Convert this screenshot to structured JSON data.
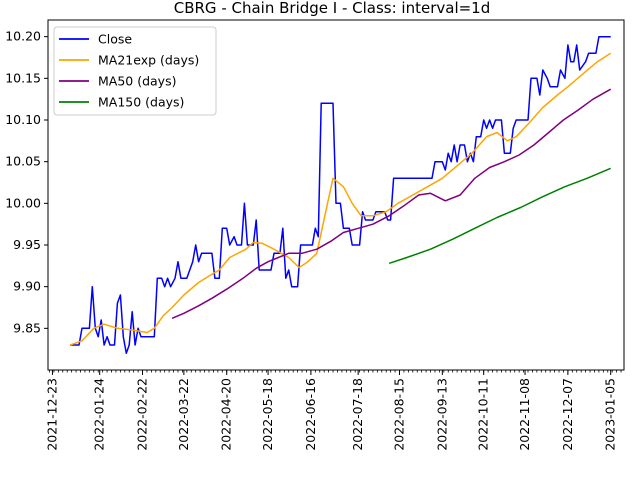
{
  "chart_data": {
    "type": "line",
    "title": "CBRG - Chain Bridge I - Class: interval=1d",
    "xlabel": "",
    "ylabel": "",
    "x_range": [
      "2021-12-20",
      "2022-01-24"
    ],
    "ylim": [
      9.8,
      10.22
    ],
    "y_ticks": [
      9.85,
      9.9,
      9.95,
      10.0,
      10.05,
      10.1,
      10.15,
      10.2
    ],
    "x_ticks": [
      "2021-12-23",
      "2022-01-24",
      "2022-02-22",
      "2022-03-22",
      "2022-04-20",
      "2022-05-18",
      "2022-06-16",
      "2022-07-18",
      "2022-08-15",
      "2022-09-13",
      "2022-10-11",
      "2022-11-08",
      "2022-12-07",
      "2023-01-05"
    ],
    "x_tick_labels": [
      "2021-12-23",
      "2022-01-24",
      "2022-02-22",
      "2022-03-22",
      "2022-04-20",
      "2022-05-18",
      "2022-06-16",
      "2022-07-18",
      "2022-08-15",
      "2022-09-13",
      "2022-10-11",
      "2022-11-08",
      "2022-12-07",
      "2023-01-05"
    ],
    "grid": false,
    "legend_position": "upper-left",
    "series": [
      {
        "name": "Close",
        "color": "#0000ff",
        "points": [
          [
            "2022-01-04",
            9.83
          ],
          [
            "2022-01-10",
            9.83
          ],
          [
            "2022-01-12",
            9.85
          ],
          [
            "2022-01-17",
            9.85
          ],
          [
            "2022-01-19",
            9.9
          ],
          [
            "2022-01-21",
            9.85
          ],
          [
            "2022-01-23",
            9.84
          ],
          [
            "2022-01-25",
            9.86
          ],
          [
            "2022-01-27",
            9.83
          ],
          [
            "2022-01-29",
            9.84
          ],
          [
            "2022-01-31",
            9.83
          ],
          [
            "2022-02-03",
            9.83
          ],
          [
            "2022-02-05",
            9.88
          ],
          [
            "2022-02-07",
            9.89
          ],
          [
            "2022-02-09",
            9.84
          ],
          [
            "2022-02-11",
            9.82
          ],
          [
            "2022-02-13",
            9.83
          ],
          [
            "2022-02-15",
            9.87
          ],
          [
            "2022-02-17",
            9.83
          ],
          [
            "2022-02-19",
            9.85
          ],
          [
            "2022-02-21",
            9.84
          ],
          [
            "2022-03-02",
            9.84
          ],
          [
            "2022-03-04",
            9.91
          ],
          [
            "2022-03-07",
            9.91
          ],
          [
            "2022-03-09",
            9.9
          ],
          [
            "2022-03-11",
            9.91
          ],
          [
            "2022-03-13",
            9.9
          ],
          [
            "2022-03-16",
            9.91
          ],
          [
            "2022-03-18",
            9.93
          ],
          [
            "2022-03-20",
            9.91
          ],
          [
            "2022-03-24",
            9.91
          ],
          [
            "2022-03-28",
            9.93
          ],
          [
            "2022-03-30",
            9.95
          ],
          [
            "2022-04-01",
            9.93
          ],
          [
            "2022-04-03",
            9.94
          ],
          [
            "2022-04-10",
            9.94
          ],
          [
            "2022-04-12",
            9.91
          ],
          [
            "2022-04-15",
            9.91
          ],
          [
            "2022-04-17",
            9.97
          ],
          [
            "2022-04-20",
            9.97
          ],
          [
            "2022-04-22",
            9.95
          ],
          [
            "2022-04-25",
            9.96
          ],
          [
            "2022-04-27",
            9.95
          ],
          [
            "2022-04-30",
            9.95
          ],
          [
            "2022-05-02",
            10.0
          ],
          [
            "2022-05-04",
            9.95
          ],
          [
            "2022-05-08",
            9.95
          ],
          [
            "2022-05-10",
            9.98
          ],
          [
            "2022-05-12",
            9.92
          ],
          [
            "2022-05-20",
            9.92
          ],
          [
            "2022-05-22",
            9.94
          ],
          [
            "2022-05-26",
            9.94
          ],
          [
            "2022-05-28",
            9.97
          ],
          [
            "2022-05-30",
            9.91
          ],
          [
            "2022-06-01",
            9.92
          ],
          [
            "2022-06-03",
            9.9
          ],
          [
            "2022-06-07",
            9.9
          ],
          [
            "2022-06-09",
            9.95
          ],
          [
            "2022-06-17",
            9.95
          ],
          [
            "2022-06-19",
            9.97
          ],
          [
            "2022-06-21",
            9.96
          ],
          [
            "2022-06-23",
            10.12
          ],
          [
            "2022-07-01",
            10.12
          ],
          [
            "2022-07-03",
            10.0
          ],
          [
            "2022-07-06",
            10.0
          ],
          [
            "2022-07-08",
            9.97
          ],
          [
            "2022-07-12",
            9.97
          ],
          [
            "2022-07-14",
            9.95
          ],
          [
            "2022-07-19",
            9.95
          ],
          [
            "2022-07-21",
            9.99
          ],
          [
            "2022-07-23",
            9.98
          ],
          [
            "2022-07-28",
            9.98
          ],
          [
            "2022-07-30",
            9.99
          ],
          [
            "2022-08-05",
            9.99
          ],
          [
            "2022-08-07",
            9.98
          ],
          [
            "2022-08-09",
            9.98
          ],
          [
            "2022-08-11",
            10.03
          ],
          [
            "2022-09-06",
            10.03
          ],
          [
            "2022-09-08",
            10.05
          ],
          [
            "2022-09-13",
            10.05
          ],
          [
            "2022-09-15",
            10.04
          ],
          [
            "2022-09-17",
            10.06
          ],
          [
            "2022-09-19",
            10.05
          ],
          [
            "2022-09-21",
            10.07
          ],
          [
            "2022-09-23",
            10.05
          ],
          [
            "2022-09-25",
            10.07
          ],
          [
            "2022-09-28",
            10.07
          ],
          [
            "2022-09-30",
            10.05
          ],
          [
            "2022-10-02",
            10.06
          ],
          [
            "2022-10-04",
            10.05
          ],
          [
            "2022-10-06",
            10.08
          ],
          [
            "2022-10-09",
            10.08
          ],
          [
            "2022-10-11",
            10.1
          ],
          [
            "2022-10-13",
            10.09
          ],
          [
            "2022-10-15",
            10.1
          ],
          [
            "2022-10-17",
            10.09
          ],
          [
            "2022-10-19",
            10.1
          ],
          [
            "2022-10-23",
            10.1
          ],
          [
            "2022-10-25",
            10.06
          ],
          [
            "2022-10-29",
            10.06
          ],
          [
            "2022-10-31",
            10.09
          ],
          [
            "2022-11-02",
            10.1
          ],
          [
            "2022-11-10",
            10.1
          ],
          [
            "2022-11-12",
            10.15
          ],
          [
            "2022-11-16",
            10.15
          ],
          [
            "2022-11-18",
            10.13
          ],
          [
            "2022-11-20",
            10.16
          ],
          [
            "2022-11-23",
            10.15
          ],
          [
            "2022-11-25",
            10.14
          ],
          [
            "2022-11-30",
            10.14
          ],
          [
            "2022-12-02",
            10.16
          ],
          [
            "2022-12-05",
            10.15
          ],
          [
            "2022-12-07",
            10.19
          ],
          [
            "2022-12-09",
            10.17
          ],
          [
            "2022-12-11",
            10.17
          ],
          [
            "2022-12-13",
            10.19
          ],
          [
            "2022-12-15",
            10.16
          ],
          [
            "2022-12-19",
            10.17
          ],
          [
            "2022-12-21",
            10.18
          ],
          [
            "2022-12-26",
            10.18
          ],
          [
            "2022-12-28",
            10.2
          ],
          [
            "2023-01-05",
            10.2
          ]
        ]
      },
      {
        "name": "MA21exp (days)",
        "color": "#ffa500",
        "points": [
          [
            "2022-01-04",
            9.83
          ],
          [
            "2022-01-12",
            9.835
          ],
          [
            "2022-01-20",
            9.85
          ],
          [
            "2022-01-27",
            9.855
          ],
          [
            "2022-02-05",
            9.85
          ],
          [
            "2022-02-15",
            9.848
          ],
          [
            "2022-02-25",
            9.845
          ],
          [
            "2022-03-02",
            9.85
          ],
          [
            "2022-03-08",
            9.865
          ],
          [
            "2022-03-14",
            9.875
          ],
          [
            "2022-03-22",
            9.89
          ],
          [
            "2022-04-01",
            9.905
          ],
          [
            "2022-04-10",
            9.915
          ],
          [
            "2022-04-15",
            9.92
          ],
          [
            "2022-04-22",
            9.935
          ],
          [
            "2022-05-03",
            9.945
          ],
          [
            "2022-05-08",
            9.953
          ],
          [
            "2022-05-14",
            9.952
          ],
          [
            "2022-05-22",
            9.945
          ],
          [
            "2022-06-01",
            9.935
          ],
          [
            "2022-06-08",
            9.923
          ],
          [
            "2022-06-14",
            9.93
          ],
          [
            "2022-06-20",
            9.94
          ],
          [
            "2022-06-26",
            9.99
          ],
          [
            "2022-07-01",
            10.03
          ],
          [
            "2022-07-08",
            10.02
          ],
          [
            "2022-07-14",
            10.0
          ],
          [
            "2022-07-20",
            9.985
          ],
          [
            "2022-07-28",
            9.985
          ],
          [
            "2022-08-06",
            9.99
          ],
          [
            "2022-08-14",
            10.0
          ],
          [
            "2022-08-24",
            10.01
          ],
          [
            "2022-09-03",
            10.02
          ],
          [
            "2022-09-13",
            10.03
          ],
          [
            "2022-09-23",
            10.045
          ],
          [
            "2022-10-03",
            10.06
          ],
          [
            "2022-10-13",
            10.08
          ],
          [
            "2022-10-20",
            10.085
          ],
          [
            "2022-10-27",
            10.075
          ],
          [
            "2022-11-02",
            10.08
          ],
          [
            "2022-11-10",
            10.095
          ],
          [
            "2022-11-20",
            10.115
          ],
          [
            "2022-11-30",
            10.13
          ],
          [
            "2022-12-07",
            10.14
          ],
          [
            "2022-12-17",
            10.155
          ],
          [
            "2022-12-27",
            10.17
          ],
          [
            "2023-01-05",
            10.18
          ]
        ]
      },
      {
        "name": "MA50 (days)",
        "color": "#800080",
        "points": [
          [
            "2022-03-14",
            9.862
          ],
          [
            "2022-03-22",
            9.868
          ],
          [
            "2022-04-01",
            9.877
          ],
          [
            "2022-04-10",
            9.886
          ],
          [
            "2022-04-20",
            9.897
          ],
          [
            "2022-05-01",
            9.91
          ],
          [
            "2022-05-10",
            9.922
          ],
          [
            "2022-05-18",
            9.93
          ],
          [
            "2022-05-25",
            9.935
          ],
          [
            "2022-06-01",
            9.94
          ],
          [
            "2022-06-10",
            9.94
          ],
          [
            "2022-06-20",
            9.945
          ],
          [
            "2022-06-30",
            9.955
          ],
          [
            "2022-07-08",
            9.965
          ],
          [
            "2022-07-18",
            9.97
          ],
          [
            "2022-07-28",
            9.975
          ],
          [
            "2022-08-08",
            9.985
          ],
          [
            "2022-08-18",
            9.997
          ],
          [
            "2022-08-28",
            10.01
          ],
          [
            "2022-09-05",
            10.012
          ],
          [
            "2022-09-15",
            10.003
          ],
          [
            "2022-09-25",
            10.01
          ],
          [
            "2022-10-05",
            10.03
          ],
          [
            "2022-10-15",
            10.043
          ],
          [
            "2022-10-25",
            10.05
          ],
          [
            "2022-11-04",
            10.058
          ],
          [
            "2022-11-14",
            10.07
          ],
          [
            "2022-11-24",
            10.085
          ],
          [
            "2022-12-04",
            10.1
          ],
          [
            "2022-12-14",
            10.112
          ],
          [
            "2022-12-24",
            10.125
          ],
          [
            "2023-01-05",
            10.137
          ]
        ]
      },
      {
        "name": "MA150 (days)",
        "color": "#008000",
        "points": [
          [
            "2022-08-08",
            9.928
          ],
          [
            "2022-08-20",
            9.935
          ],
          [
            "2022-09-05",
            9.945
          ],
          [
            "2022-09-20",
            9.957
          ],
          [
            "2022-10-05",
            9.97
          ],
          [
            "2022-10-20",
            9.983
          ],
          [
            "2022-11-05",
            9.995
          ],
          [
            "2022-11-20",
            10.008
          ],
          [
            "2022-12-05",
            10.02
          ],
          [
            "2022-12-20",
            10.03
          ],
          [
            "2023-01-05",
            10.042
          ]
        ]
      }
    ]
  }
}
